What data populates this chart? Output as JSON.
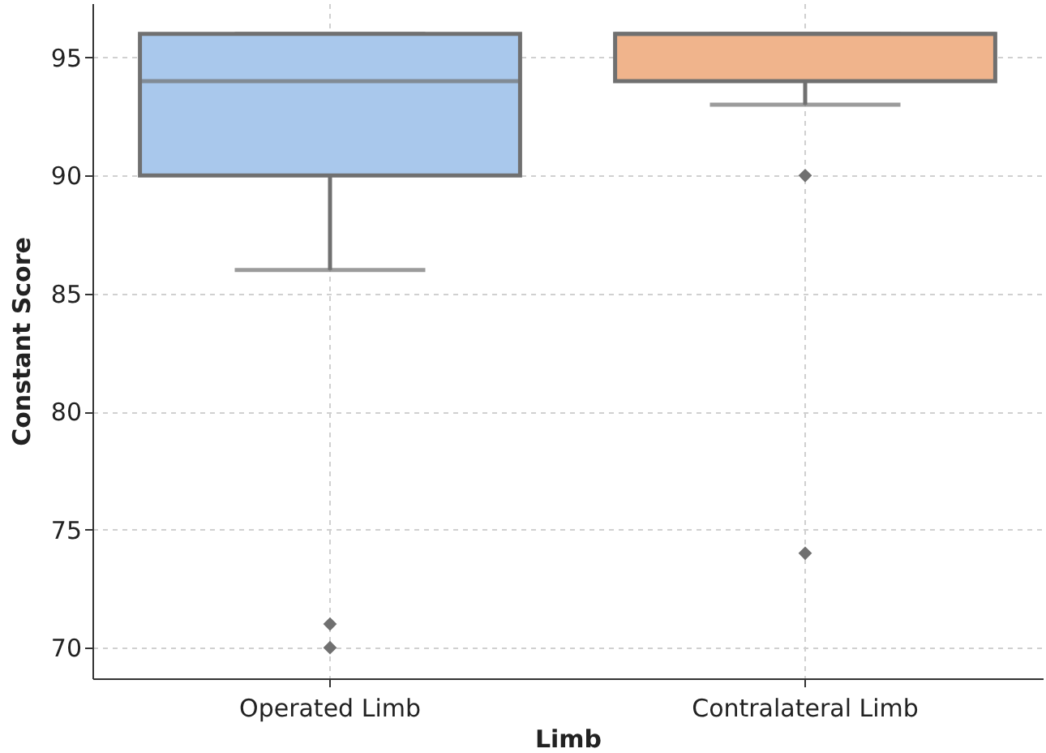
{
  "chart_data": {
    "type": "box",
    "xlabel": "Limb",
    "ylabel": "Constant Score",
    "categories": [
      "Operated Limb",
      "Contralateral Limb"
    ],
    "boxes": [
      {
        "low": 86,
        "q1": 90,
        "median": 94,
        "q3": 96,
        "high": 96,
        "outliers": [
          71,
          70
        ]
      },
      {
        "low": 93,
        "q1": 94,
        "median": 96,
        "q3": 96,
        "high": 96,
        "outliers": [
          90,
          74
        ]
      }
    ],
    "colors": [
      "#a9c8ec",
      "#f0b48c"
    ],
    "ylim": [
      68.7,
      97.3
    ],
    "yticks": [
      70,
      75,
      80,
      85,
      90,
      95
    ],
    "grid": true
  }
}
